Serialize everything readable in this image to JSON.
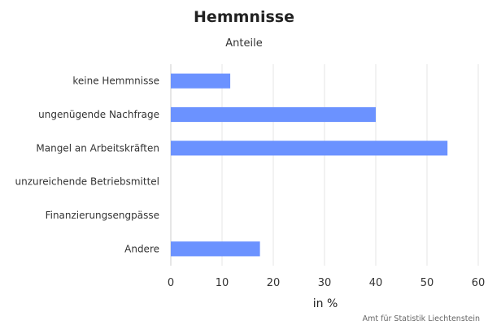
{
  "chart_data": {
    "type": "bar",
    "orientation": "horizontal",
    "title": "Hemmnisse",
    "subtitle": "Anteile",
    "categories": [
      "keine Hemmnisse",
      "ungenügende Nachfrage",
      "Mangel an Arbeitskräften",
      "unzureichende Betriebsmittel",
      "Finanzierungsengpässe",
      "Andere"
    ],
    "values": [
      11.6,
      40,
      54,
      0,
      0,
      17.4
    ],
    "xlabel": "in %",
    "ylabel": "",
    "xlim": [
      0,
      60
    ],
    "xticks": [
      "0",
      "10",
      "20",
      "30",
      "40",
      "50",
      "60"
    ],
    "grid": true,
    "legend": "none",
    "bar_color": "#6b92ff",
    "credits": "Amt für Statistik Liechtenstein"
  }
}
